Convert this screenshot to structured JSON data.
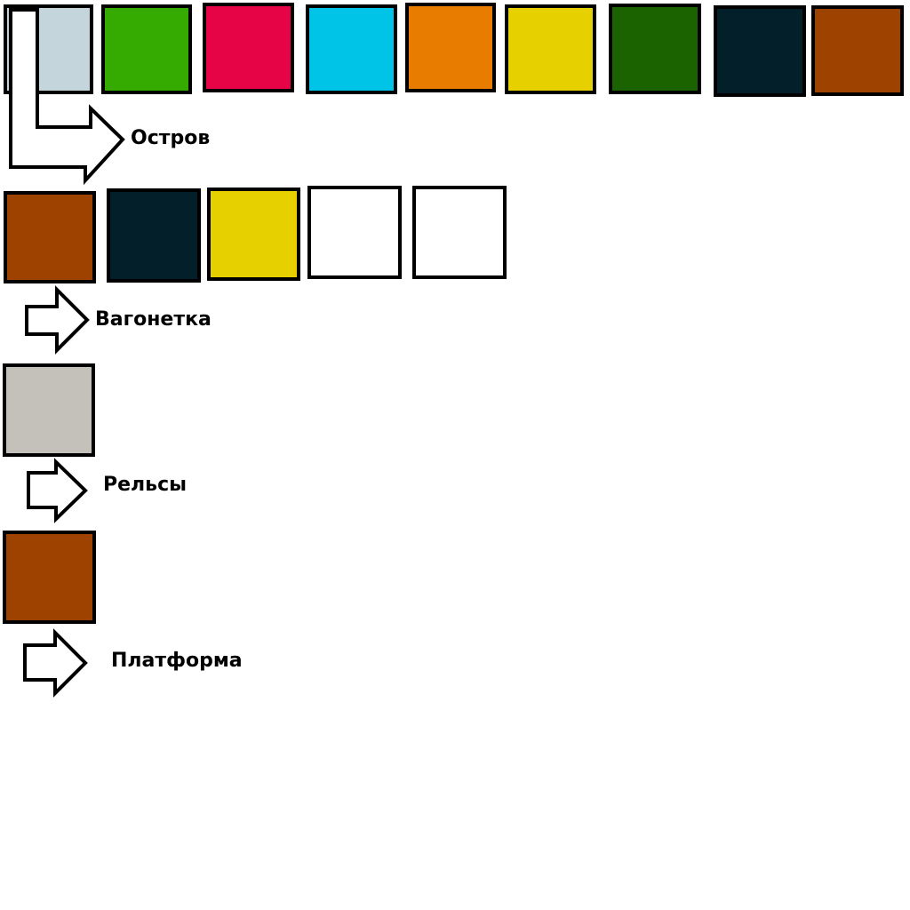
{
  "groups": [
    {
      "id": "island",
      "label": "Остров",
      "swatches": [
        "#c4d6dc",
        "#35ab01",
        "#e60446",
        "#00c3e8",
        "#e87c00",
        "#e6d000",
        "#1a6300",
        "#03202a",
        "#9e4200"
      ]
    },
    {
      "id": "cart",
      "label": "Вагонетка",
      "swatches": [
        "#9e4200",
        "#03202a",
        "#e6d000",
        "#ffffff",
        "#ffffff"
      ]
    },
    {
      "id": "rails",
      "label": "Рельсы",
      "swatches": [
        "#c3c1ba"
      ]
    },
    {
      "id": "platform",
      "label": "Платформа",
      "swatches": [
        "#9e4200"
      ]
    }
  ]
}
